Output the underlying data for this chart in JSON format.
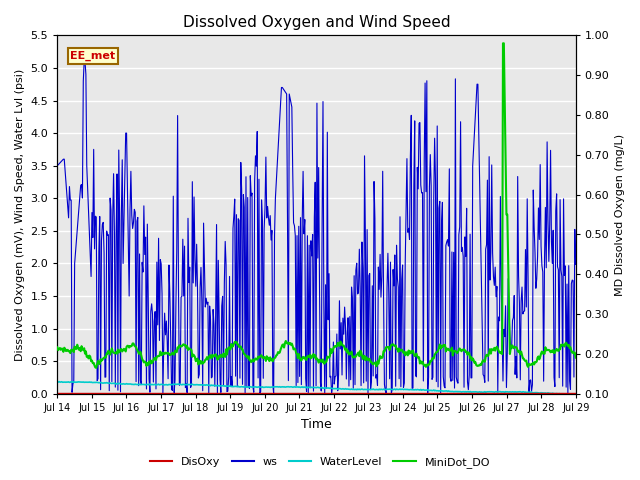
{
  "title": "Dissolved Oxygen and Wind Speed",
  "xlabel": "Time",
  "ylabel_left": "Dissolved Oxygen (mV), Wind Speed, Water Lvl (psi)",
  "ylabel_right": "MD Dissolved Oxygen (mg/L)",
  "annotation": "EE_met",
  "ylim_left": [
    0.0,
    5.5
  ],
  "ylim_right": [
    0.1,
    1.0
  ],
  "yticks_left": [
    0.0,
    0.5,
    1.0,
    1.5,
    2.0,
    2.5,
    3.0,
    3.5,
    4.0,
    4.5,
    5.0,
    5.5
  ],
  "yticks_right": [
    0.1,
    0.2,
    0.3,
    0.4,
    0.5,
    0.6,
    0.7,
    0.8,
    0.9,
    1.0
  ],
  "n_points": 600,
  "time_start": 14.0,
  "time_end": 29.0,
  "colors": {
    "DisOxy": "#cc0000",
    "ws": "#0000cc",
    "WaterLevel": "#00cccc",
    "MiniDot_DO": "#00cc00"
  },
  "linewidths": {
    "DisOxy": 1.0,
    "ws": 0.8,
    "WaterLevel": 1.2,
    "MiniDot_DO": 1.5
  },
  "background_color": "#e8e8e8",
  "grid_color": "#ffffff",
  "xtick_labels": [
    "Jul 14",
    "Jul 15",
    "Jul 16",
    "Jul 17",
    "Jul 18",
    "Jul 19",
    "Jul 20",
    "Jul 21",
    "Jul 22",
    "Jul 23",
    "Jul 24",
    "Jul 25",
    "Jul 26",
    "Jul 27",
    "Jul 28",
    "Jul 29"
  ],
  "xtick_positions": [
    14,
    15,
    16,
    17,
    18,
    19,
    20,
    21,
    22,
    23,
    24,
    25,
    26,
    27,
    28,
    29
  ]
}
